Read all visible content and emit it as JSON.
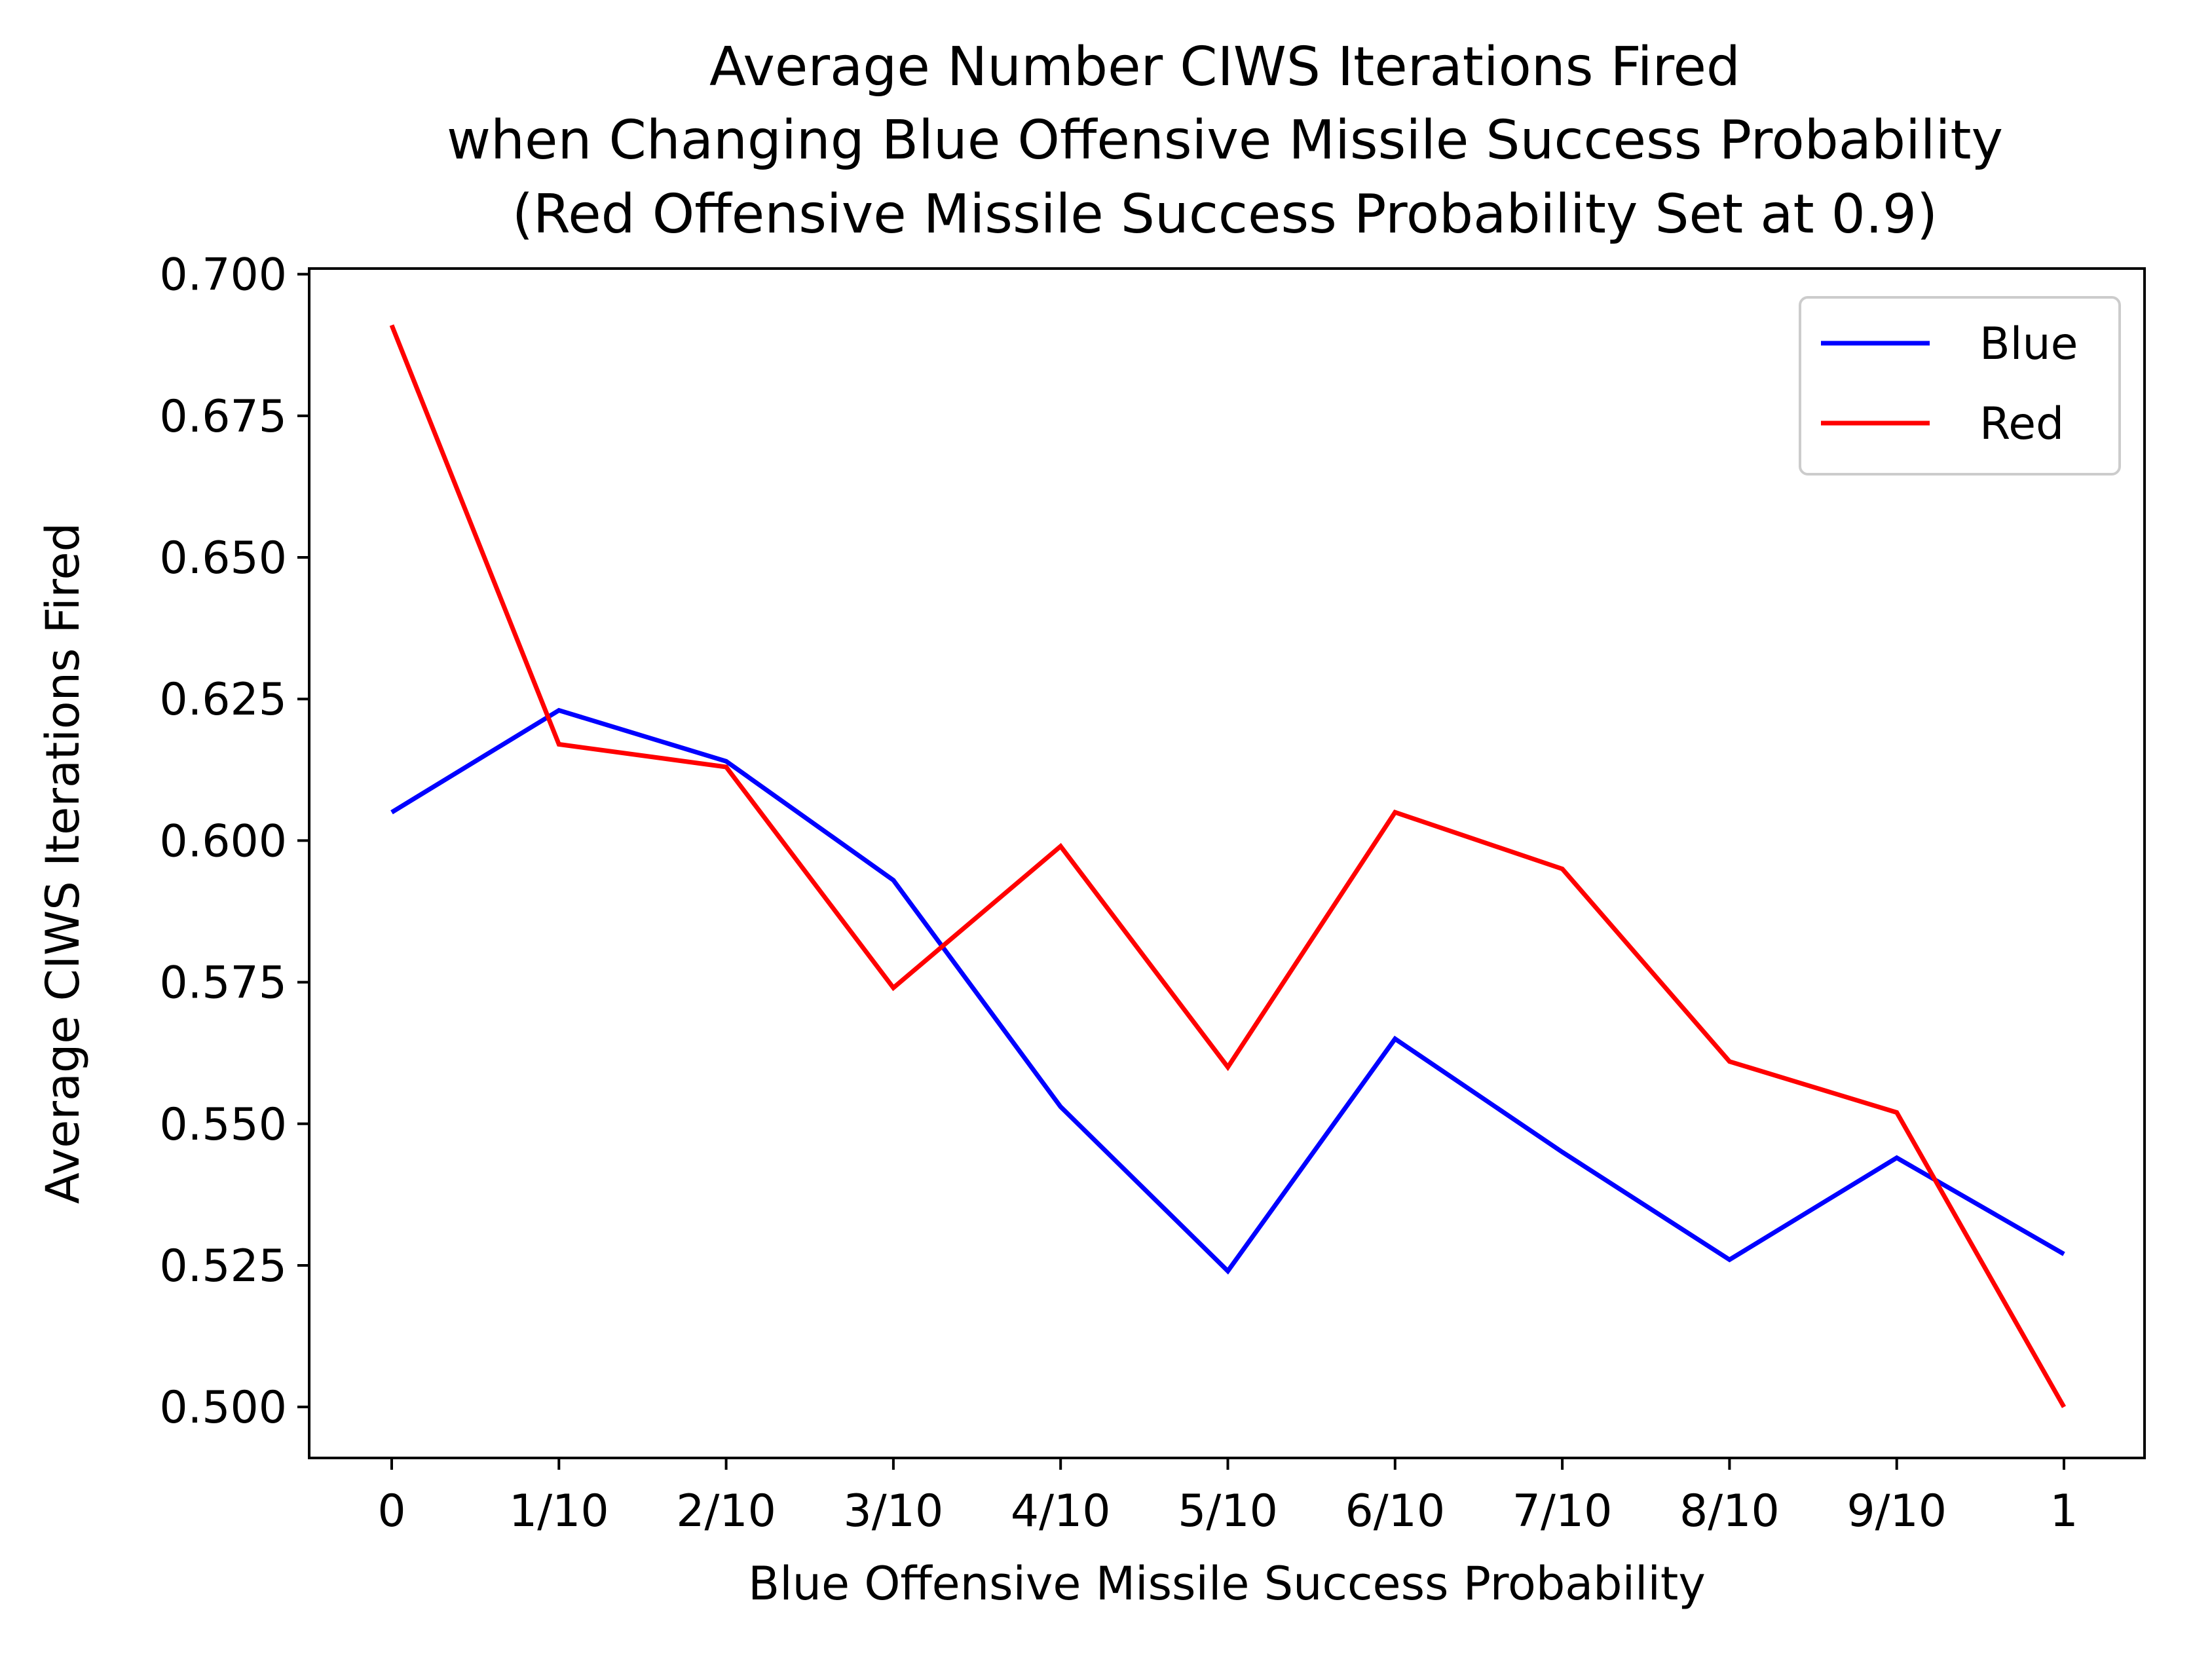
{
  "chart_data": {
    "type": "line",
    "title_lines": [
      "Average Number CIWS Iterations Fired",
      "when Changing Blue Offensive Missile Success Probability",
      "(Red Offensive Missile Success Probability Set at 0.9)"
    ],
    "xlabel": "Blue Offensive Missile Success Probability",
    "ylabel": "Average CIWS Iterations Fired",
    "categories": [
      "0",
      "1/10",
      "2/10",
      "3/10",
      "4/10",
      "5/10",
      "6/10",
      "7/10",
      "8/10",
      "9/10",
      "1"
    ],
    "ylim": [
      0.491,
      0.701
    ],
    "yticks": [
      0.5,
      0.525,
      0.55,
      0.575,
      0.6,
      0.625,
      0.65,
      0.675,
      0.7
    ],
    "ytick_labels": [
      "0.500",
      "0.525",
      "0.550",
      "0.575",
      "0.600",
      "0.625",
      "0.650",
      "0.675",
      "0.700"
    ],
    "grid": false,
    "legend_position": "upper right",
    "series": [
      {
        "name": "Blue",
        "color": "#0000ff",
        "values": [
          0.605,
          0.623,
          0.614,
          0.593,
          0.553,
          0.524,
          0.565,
          0.545,
          0.526,
          0.544,
          0.527
        ]
      },
      {
        "name": "Red",
        "color": "#ff0000",
        "values": [
          0.691,
          0.617,
          0.613,
          0.574,
          0.599,
          0.56,
          0.605,
          0.595,
          0.561,
          0.552,
          0.5
        ]
      }
    ]
  }
}
